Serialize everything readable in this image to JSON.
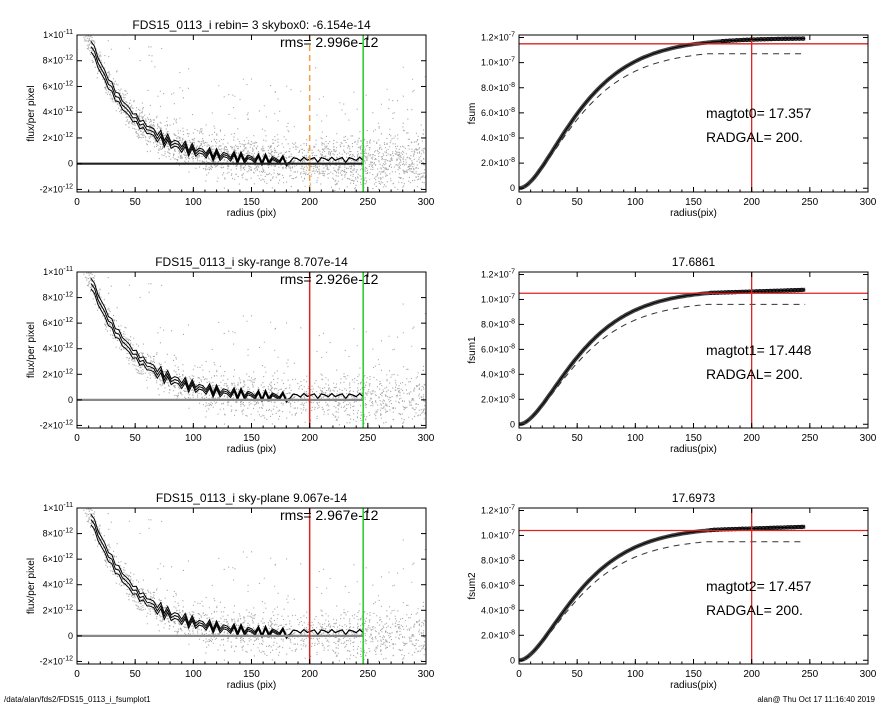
{
  "footer": {
    "path": "/data/alan/fds2/FDS15_0113_i_fsumplot1",
    "user": "alan@  Thu Oct 17 11:16:40 2019"
  },
  "colors": {
    "axis": "#000000",
    "scatter": "#a9a9a9",
    "profile": "#000000",
    "zero_line_first": "#222222",
    "zero_line": "#888888",
    "green_line": "#22cc22",
    "red_line": "#dd2222",
    "orange_line": "#f5a040"
  },
  "chart_data": [
    {
      "id": "profile-1",
      "type": "scatter",
      "title": "FDS15_0113_i rebin= 3    skybox0: -6.154e-14",
      "annotation": "rms= 2.996e-12",
      "xlabel": "radius (pix)",
      "ylabel": "flux/per pixel",
      "xlim": [
        0,
        300
      ],
      "ylim": [
        -2.2e-12,
        1e-11
      ],
      "xticks": [
        0,
        50,
        100,
        150,
        200,
        250,
        300
      ],
      "yticks": [
        {
          "v": 1e-11,
          "m": "1×10",
          "e": "-11"
        },
        {
          "v": 8e-12,
          "m": "8×10",
          "e": "-12"
        },
        {
          "v": 6e-12,
          "m": "6×10",
          "e": "-12"
        },
        {
          "v": 4e-12,
          "m": "4×10",
          "e": "-12"
        },
        {
          "v": 2e-12,
          "m": "2×10",
          "e": "-12"
        },
        {
          "v": 0,
          "m": "0",
          "e": ""
        },
        {
          "v": -2e-12,
          "m": "-2×10",
          "e": "-12"
        }
      ],
      "vlines": [
        {
          "x": 200,
          "color": "orange",
          "dashed": true
        },
        {
          "x": 246,
          "color": "green",
          "dashed": false
        }
      ],
      "zero_line": "first"
    },
    {
      "id": "fsum-1",
      "type": "line",
      "title": "",
      "xlabel": "radius(pix)",
      "ylabel": "fsum",
      "xlim": [
        0,
        300
      ],
      "ylim": [
        -3e-09,
        1.22e-07
      ],
      "xticks": [
        0,
        50,
        100,
        150,
        200,
        250,
        300
      ],
      "yticks": [
        {
          "v": 1.2e-07,
          "m": "1.2×10",
          "e": "-7"
        },
        {
          "v": 1e-07,
          "m": "1.0×10",
          "e": "-7"
        },
        {
          "v": 8e-08,
          "m": "8.0×10",
          "e": "-8"
        },
        {
          "v": 6e-08,
          "m": "6.0×10",
          "e": "-8"
        },
        {
          "v": 4e-08,
          "m": "4.0×10",
          "e": "-8"
        },
        {
          "v": 2e-08,
          "m": "2.0×10",
          "e": "-8"
        },
        {
          "v": 0,
          "m": "0",
          "e": ""
        }
      ],
      "curve_plateau": 1.16e-07,
      "dash_plateau": 1.07e-07,
      "flat_from": 0,
      "hline": 1.15e-07,
      "vline": 200,
      "labels": [
        "magtot0=  17.357",
        "RADGAL=    200."
      ]
    },
    {
      "id": "profile-2",
      "type": "scatter",
      "title": "FDS15_0113_i sky-range  8.707e-14",
      "annotation": "rms= 2.926e-12",
      "xlabel": "radius (pix)",
      "ylabel": "flux/per pixel",
      "xlim": [
        0,
        300
      ],
      "ylim": [
        -2.2e-12,
        1e-11
      ],
      "xticks": [
        0,
        50,
        100,
        150,
        200,
        250,
        300
      ],
      "yticks": [
        {
          "v": 1e-11,
          "m": "1×10",
          "e": "-11"
        },
        {
          "v": 8e-12,
          "m": "8×10",
          "e": "-12"
        },
        {
          "v": 6e-12,
          "m": "6×10",
          "e": "-12"
        },
        {
          "v": 4e-12,
          "m": "4×10",
          "e": "-12"
        },
        {
          "v": 2e-12,
          "m": "2×10",
          "e": "-12"
        },
        {
          "v": 0,
          "m": "0",
          "e": ""
        },
        {
          "v": -2e-12,
          "m": "-2×10",
          "e": "-12"
        }
      ],
      "vlines": [
        {
          "x": 200,
          "color": "red",
          "dashed": false
        },
        {
          "x": 246,
          "color": "green",
          "dashed": false
        }
      ],
      "zero_line": "gray"
    },
    {
      "id": "fsum-2",
      "type": "line",
      "title": "17.6861",
      "xlabel": "radius(pix)",
      "ylabel": "fsum1",
      "xlim": [
        0,
        300
      ],
      "ylim": [
        -3e-09,
        1.22e-07
      ],
      "xticks": [
        0,
        50,
        100,
        150,
        200,
        250,
        300
      ],
      "yticks": [
        {
          "v": 1.2e-07,
          "m": "1.2×10",
          "e": "-7"
        },
        {
          "v": 1e-07,
          "m": "1.0×10",
          "e": "-7"
        },
        {
          "v": 8e-08,
          "m": "8.0×10",
          "e": "-8"
        },
        {
          "v": 6e-08,
          "m": "6.0×10",
          "e": "-8"
        },
        {
          "v": 4e-08,
          "m": "4.0×10",
          "e": "-8"
        },
        {
          "v": 2e-08,
          "m": "2.0×10",
          "e": "-8"
        },
        {
          "v": 0,
          "m": "0",
          "e": ""
        }
      ],
      "curve_plateau": 1.05e-07,
      "dash_plateau": 9.6e-08,
      "flat_from": 165,
      "hline": 1.05e-07,
      "vline": 200,
      "labels": [
        "magtot1=  17.448",
        "RADGAL=    200."
      ]
    },
    {
      "id": "profile-3",
      "type": "scatter",
      "title": "FDS15_0113_i sky-plane  9.067e-14",
      "annotation": "rms= 2.967e-12",
      "xlabel": "radius (pix)",
      "ylabel": "flux/per pixel",
      "xlim": [
        0,
        300
      ],
      "ylim": [
        -2.2e-12,
        1e-11
      ],
      "xticks": [
        0,
        50,
        100,
        150,
        200,
        250,
        300
      ],
      "yticks": [
        {
          "v": 1e-11,
          "m": "1×10",
          "e": "-11"
        },
        {
          "v": 8e-12,
          "m": "8×10",
          "e": "-12"
        },
        {
          "v": 6e-12,
          "m": "6×10",
          "e": "-12"
        },
        {
          "v": 4e-12,
          "m": "4×10",
          "e": "-12"
        },
        {
          "v": 2e-12,
          "m": "2×10",
          "e": "-12"
        },
        {
          "v": 0,
          "m": "0",
          "e": ""
        },
        {
          "v": -2e-12,
          "m": "-2×10",
          "e": "-12"
        }
      ],
      "vlines": [
        {
          "x": 200,
          "color": "red",
          "dashed": false
        },
        {
          "x": 246,
          "color": "green",
          "dashed": false
        }
      ],
      "zero_line": "gray"
    },
    {
      "id": "fsum-3",
      "type": "line",
      "title": "17.6973",
      "xlabel": "radius(pix)",
      "ylabel": "fsum2",
      "xlim": [
        0,
        300
      ],
      "ylim": [
        -3e-09,
        1.22e-07
      ],
      "xticks": [
        0,
        50,
        100,
        150,
        200,
        250,
        300
      ],
      "yticks": [
        {
          "v": 1.2e-07,
          "m": "1.2×10",
          "e": "-7"
        },
        {
          "v": 1e-07,
          "m": "1.0×10",
          "e": "-7"
        },
        {
          "v": 8e-08,
          "m": "8.0×10",
          "e": "-8"
        },
        {
          "v": 6e-08,
          "m": "6.0×10",
          "e": "-8"
        },
        {
          "v": 4e-08,
          "m": "4.0×10",
          "e": "-8"
        },
        {
          "v": 2e-08,
          "m": "2.0×10",
          "e": "-8"
        },
        {
          "v": 0,
          "m": "0",
          "e": ""
        }
      ],
      "curve_plateau": 1.04e-07,
      "dash_plateau": 9.5e-08,
      "flat_from": 170,
      "hline": 1.04e-07,
      "vline": 200,
      "labels": [
        "magtot2=  17.457",
        "RADGAL=    200."
      ]
    }
  ]
}
